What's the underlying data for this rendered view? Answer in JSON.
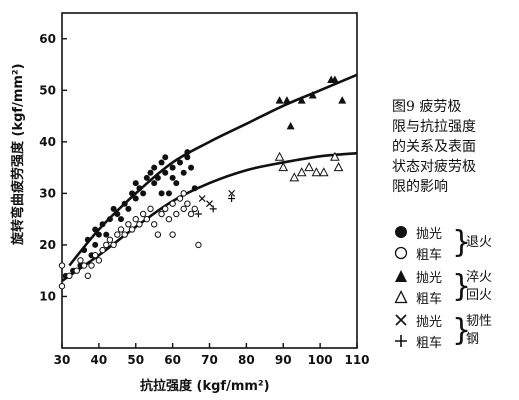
{
  "chart_data": {
    "type": "scatter",
    "title": "",
    "xlabel": "抗拉强度 (kgf/mm²)",
    "ylabel": "旋转弯曲疲劳强度 (kgf/mm²)",
    "xlim": [
      30,
      110
    ],
    "ylim": [
      0,
      65
    ],
    "xticks": [
      "30",
      "40",
      "50",
      "60",
      "70",
      "80",
      "90",
      "100",
      "110"
    ],
    "yticks": [
      "10",
      "20",
      "30",
      "40",
      "50",
      "60"
    ],
    "caption": [
      "图9 疲劳极",
      "限与抗拉强度",
      "的关系及表面",
      "状态对疲劳极",
      "限的影响"
    ],
    "legend_groups": [
      {
        "category": [
          "退火"
        ],
        "entries": [
          {
            "name": "抛光",
            "marker": "filled-circle"
          },
          {
            "name": "粗车",
            "marker": "open-circle"
          }
        ]
      },
      {
        "category": [
          "淬火",
          "回火"
        ],
        "entries": [
          {
            "name": "抛光",
            "marker": "filled-triangle"
          },
          {
            "name": "粗车",
            "marker": "open-triangle"
          }
        ]
      },
      {
        "category": [
          "韧性",
          "钢"
        ],
        "entries": [
          {
            "name": "抛光",
            "marker": "x"
          },
          {
            "name": "粗车",
            "marker": "plus"
          }
        ]
      }
    ],
    "series": [
      {
        "marker": "filled-circle",
        "points": [
          [
            31,
            14
          ],
          [
            33,
            15
          ],
          [
            35,
            16
          ],
          [
            36,
            19
          ],
          [
            37,
            21
          ],
          [
            38,
            18
          ],
          [
            39,
            20
          ],
          [
            39,
            23
          ],
          [
            40,
            22
          ],
          [
            41,
            24
          ],
          [
            42,
            22
          ],
          [
            43,
            25
          ],
          [
            44,
            27
          ],
          [
            45,
            26
          ],
          [
            46,
            25
          ],
          [
            47,
            28
          ],
          [
            48,
            27
          ],
          [
            49,
            30
          ],
          [
            50,
            29
          ],
          [
            50,
            32
          ],
          [
            51,
            31
          ],
          [
            52,
            30
          ],
          [
            53,
            33
          ],
          [
            54,
            34
          ],
          [
            55,
            32
          ],
          [
            55,
            35
          ],
          [
            56,
            33
          ],
          [
            57,
            30
          ],
          [
            57,
            36
          ],
          [
            58,
            34
          ],
          [
            58,
            37
          ],
          [
            59,
            30
          ],
          [
            60,
            35
          ],
          [
            60,
            33
          ],
          [
            61,
            32
          ],
          [
            62,
            36
          ],
          [
            63,
            34
          ],
          [
            64,
            37
          ],
          [
            64,
            38
          ],
          [
            65,
            35
          ],
          [
            66,
            31
          ]
        ]
      },
      {
        "marker": "open-circle",
        "points": [
          [
            30,
            12
          ],
          [
            30,
            16
          ],
          [
            32,
            14
          ],
          [
            34,
            15
          ],
          [
            35,
            17
          ],
          [
            36,
            16
          ],
          [
            37,
            14
          ],
          [
            38,
            16
          ],
          [
            39,
            18
          ],
          [
            40,
            17
          ],
          [
            41,
            19
          ],
          [
            42,
            20
          ],
          [
            43,
            21
          ],
          [
            44,
            20
          ],
          [
            45,
            22
          ],
          [
            46,
            23
          ],
          [
            47,
            22
          ],
          [
            48,
            24
          ],
          [
            49,
            23
          ],
          [
            50,
            25
          ],
          [
            51,
            24
          ],
          [
            52,
            26
          ],
          [
            53,
            25
          ],
          [
            54,
            27
          ],
          [
            55,
            24
          ],
          [
            56,
            22
          ],
          [
            57,
            26
          ],
          [
            58,
            27
          ],
          [
            59,
            25
          ],
          [
            60,
            28
          ],
          [
            60,
            22
          ],
          [
            61,
            26
          ],
          [
            62,
            29
          ],
          [
            63,
            27
          ],
          [
            63,
            30
          ],
          [
            64,
            28
          ],
          [
            65,
            26
          ],
          [
            66,
            27
          ],
          [
            67,
            20
          ]
        ]
      },
      {
        "marker": "filled-triangle",
        "points": [
          [
            89,
            48
          ],
          [
            91,
            48
          ],
          [
            92,
            43
          ],
          [
            95,
            48
          ],
          [
            98,
            49
          ],
          [
            103,
            52
          ],
          [
            104,
            52
          ],
          [
            106,
            48
          ]
        ]
      },
      {
        "marker": "open-triangle",
        "points": [
          [
            89,
            37
          ],
          [
            90,
            35
          ],
          [
            93,
            33
          ],
          [
            95,
            34
          ],
          [
            97,
            35
          ],
          [
            99,
            34
          ],
          [
            101,
            34
          ],
          [
            104,
            37
          ],
          [
            105,
            35
          ]
        ]
      },
      {
        "marker": "x",
        "points": [
          [
            68,
            29
          ],
          [
            70,
            28
          ],
          [
            76,
            30
          ]
        ]
      },
      {
        "marker": "plus",
        "points": [
          [
            67,
            26
          ],
          [
            71,
            27
          ],
          [
            76,
            29
          ]
        ]
      }
    ],
    "curves": [
      {
        "points": [
          [
            32,
            16
          ],
          [
            40,
            23
          ],
          [
            50,
            30
          ],
          [
            60,
            36
          ],
          [
            70,
            40
          ],
          [
            80,
            43.5
          ],
          [
            90,
            47
          ],
          [
            100,
            50
          ],
          [
            110,
            53
          ]
        ]
      },
      {
        "points": [
          [
            30,
            13
          ],
          [
            40,
            18
          ],
          [
            50,
            23.5
          ],
          [
            60,
            28.5
          ],
          [
            70,
            32
          ],
          [
            80,
            34.5
          ],
          [
            90,
            36
          ],
          [
            100,
            37.2
          ],
          [
            110,
            37.8
          ]
        ]
      }
    ]
  }
}
